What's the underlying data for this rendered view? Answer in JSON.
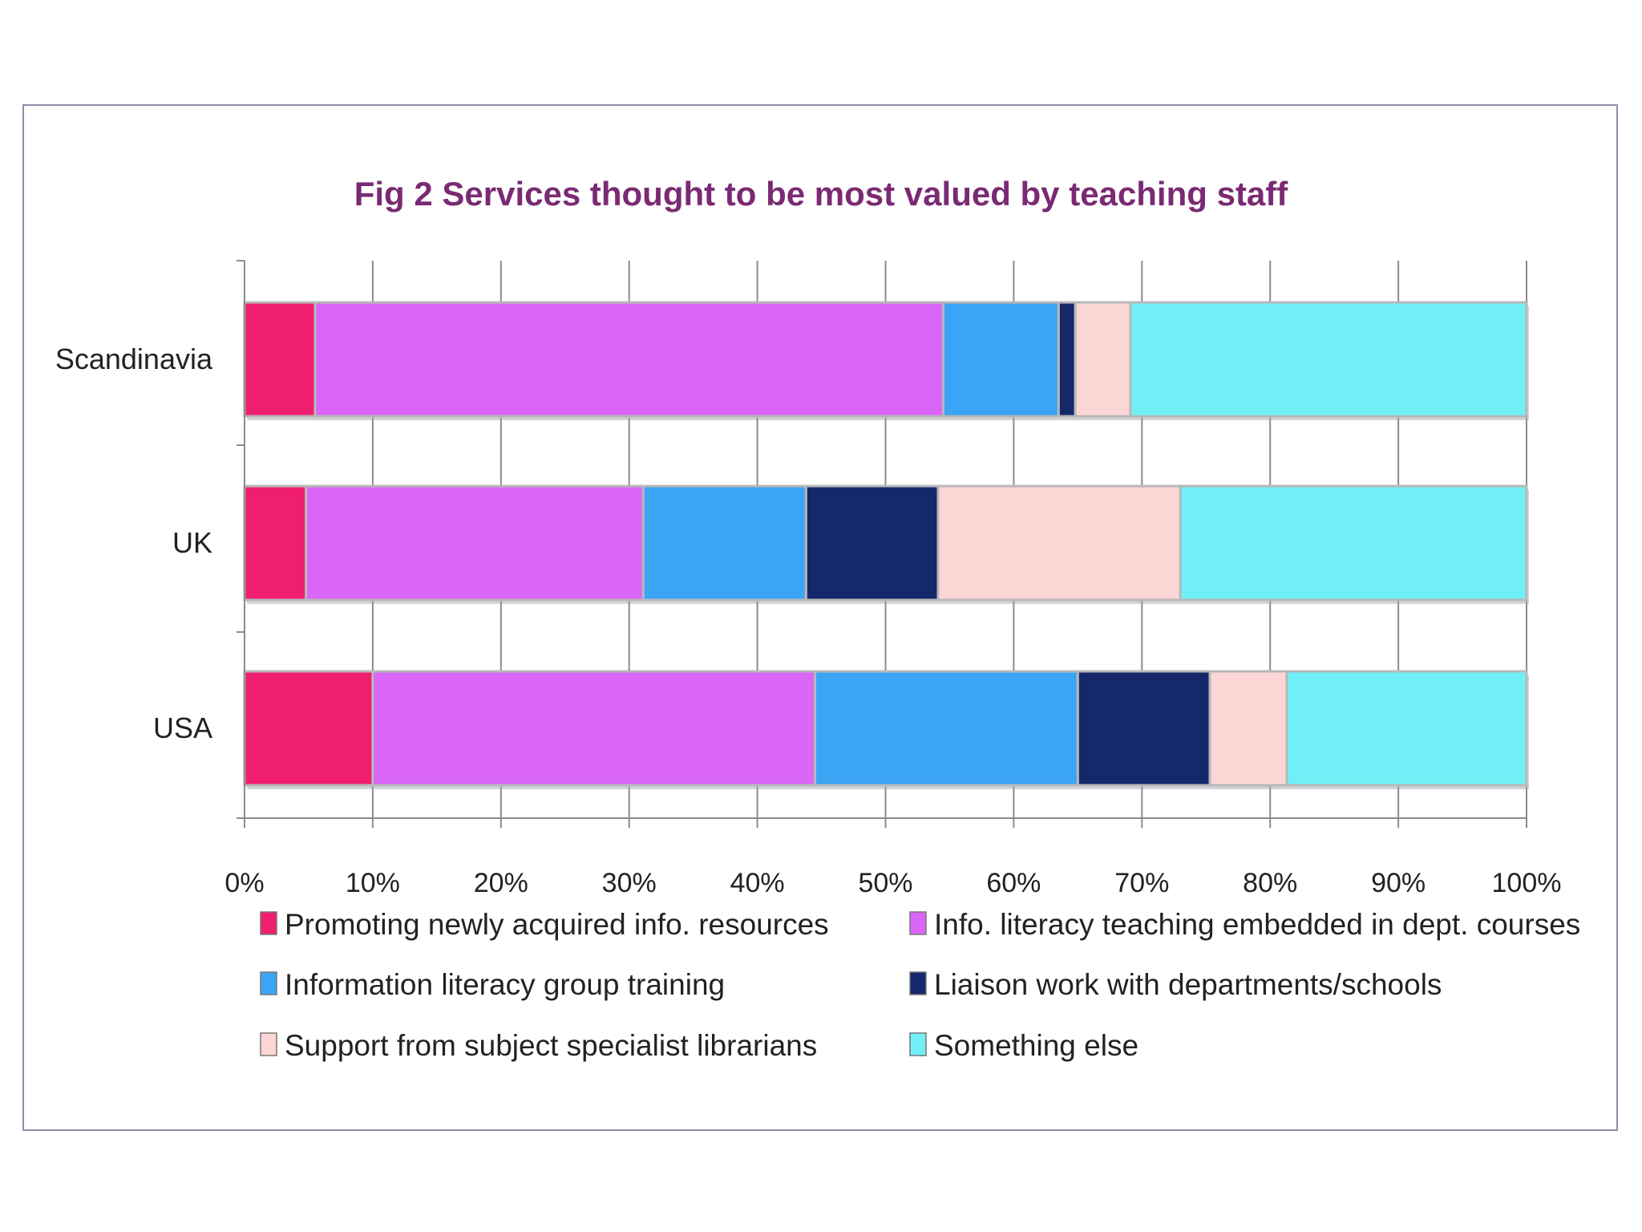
{
  "chart_data": {
    "type": "bar",
    "orientation": "horizontal",
    "stacked": "percent",
    "title": "Fig 2 Services thought to be most valued by teaching staff",
    "categories": [
      "Scandinavia",
      "UK",
      "USA"
    ],
    "x_ticks": [
      "0%",
      "10%",
      "20%",
      "30%",
      "40%",
      "50%",
      "60%",
      "70%",
      "80%",
      "90%",
      "100%"
    ],
    "xlim": [
      0,
      100
    ],
    "grid": "vertical",
    "legend_position": "bottom",
    "series": [
      {
        "name": "Promoting newly acquired info. resources",
        "color": "#f01e6e",
        "values": [
          5.5,
          4.8,
          10.0
        ]
      },
      {
        "name": "Info. literacy teaching embedded in dept. courses",
        "color": "#d966f7",
        "values": [
          49.0,
          26.3,
          34.5
        ]
      },
      {
        "name": "Information literacy group training",
        "color": "#3aa4f5",
        "values": [
          9.0,
          12.7,
          20.5
        ]
      },
      {
        "name": "Liaison work with departments/schools",
        "color": "#14286a",
        "values": [
          1.3,
          10.3,
          10.3
        ]
      },
      {
        "name": "Support from subject specialist librarians",
        "color": "#fbd6d4",
        "values": [
          4.3,
          18.9,
          6.0
        ]
      },
      {
        "name": "Something else",
        "color": "#70f0f6",
        "values": [
          30.9,
          27.0,
          18.7
        ]
      }
    ]
  }
}
